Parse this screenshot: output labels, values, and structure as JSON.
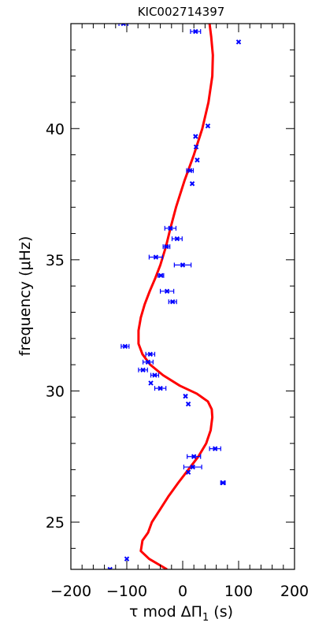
{
  "chart_data": {
    "type": "scatter",
    "title": "KIC002714397",
    "xlabel": "τ mod ΔΠ",
    "xlabel_subscript": "1",
    "xlabel_unit": "(s)",
    "ylabel": "frequency (μHz)",
    "xlim": [
      -200,
      200
    ],
    "ylim": [
      23.2,
      44.0
    ],
    "x_ticks": [
      -200,
      -100,
      0,
      100,
      200
    ],
    "x_tick_labels": [
      "−200",
      "−100",
      "0",
      "100",
      "200"
    ],
    "y_ticks": [
      25,
      30,
      35,
      40
    ],
    "y_tick_labels": [
      "25",
      "30",
      "35",
      "40"
    ],
    "grid": false,
    "colors": {
      "points": "#0000ff",
      "model": "#ff0000",
      "axes": "#000000"
    },
    "series": [
      {
        "kind": "points_with_xerror",
        "points": [
          {
            "x": -130,
            "y": 23.2,
            "xerr": 0
          },
          {
            "x": -100,
            "y": 23.6,
            "xerr": 0
          },
          {
            "x": 10,
            "y": 26.9,
            "xerr": 0
          },
          {
            "x": 72,
            "y": 26.5,
            "xerr": 4
          },
          {
            "x": 18,
            "y": 27.1,
            "xerr": 16
          },
          {
            "x": 20,
            "y": 27.5,
            "xerr": 12
          },
          {
            "x": 58,
            "y": 27.8,
            "xerr": 10
          },
          {
            "x": 10,
            "y": 29.5,
            "xerr": 0
          },
          {
            "x": 5,
            "y": 29.8,
            "xerr": 0
          },
          {
            "x": -40,
            "y": 30.1,
            "xerr": 10
          },
          {
            "x": -57,
            "y": 30.3,
            "xerr": 0
          },
          {
            "x": -50,
            "y": 30.6,
            "xerr": 7
          },
          {
            "x": -71,
            "y": 30.8,
            "xerr": 8
          },
          {
            "x": -62,
            "y": 31.1,
            "xerr": 9
          },
          {
            "x": -58,
            "y": 31.4,
            "xerr": 8
          },
          {
            "x": -103,
            "y": 31.7,
            "xerr": 7
          },
          {
            "x": -18,
            "y": 33.4,
            "xerr": 7
          },
          {
            "x": -28,
            "y": 33.8,
            "xerr": 12
          },
          {
            "x": -39,
            "y": 34.4,
            "xerr": 5
          },
          {
            "x": 0,
            "y": 34.8,
            "xerr": 15
          },
          {
            "x": -48,
            "y": 35.1,
            "xerr": 12
          },
          {
            "x": -29,
            "y": 35.5,
            "xerr": 6
          },
          {
            "x": -10,
            "y": 35.8,
            "xerr": 9
          },
          {
            "x": -22,
            "y": 36.2,
            "xerr": 10
          },
          {
            "x": 17,
            "y": 37.9,
            "xerr": 0
          },
          {
            "x": 13,
            "y": 38.4,
            "xerr": 6
          },
          {
            "x": 26,
            "y": 38.8,
            "xerr": 0
          },
          {
            "x": 24,
            "y": 39.3,
            "xerr": 0
          },
          {
            "x": 23,
            "y": 39.7,
            "xerr": 0
          },
          {
            "x": 45,
            "y": 40.1,
            "xerr": 0
          },
          {
            "x": 100,
            "y": 43.3,
            "xerr": 0
          },
          {
            "x": 23,
            "y": 43.7,
            "xerr": 9
          },
          {
            "x": -106,
            "y": 44.0,
            "xerr": 8
          }
        ]
      },
      {
        "kind": "line",
        "points": [
          {
            "x": -28,
            "y": 23.2
          },
          {
            "x": -60,
            "y": 23.6
          },
          {
            "x": -75,
            "y": 23.9
          },
          {
            "x": -72,
            "y": 24.3
          },
          {
            "x": -62,
            "y": 24.6
          },
          {
            "x": -55,
            "y": 25.0
          },
          {
            "x": -40,
            "y": 25.5
          },
          {
            "x": -25,
            "y": 26.0
          },
          {
            "x": -8,
            "y": 26.5
          },
          {
            "x": 10,
            "y": 27.0
          },
          {
            "x": 28,
            "y": 27.5
          },
          {
            "x": 42,
            "y": 28.0
          },
          {
            "x": 50,
            "y": 28.5
          },
          {
            "x": 53,
            "y": 29.0
          },
          {
            "x": 52,
            "y": 29.3
          },
          {
            "x": 45,
            "y": 29.6
          },
          {
            "x": 25,
            "y": 29.9
          },
          {
            "x": -5,
            "y": 30.2
          },
          {
            "x": -35,
            "y": 30.6
          },
          {
            "x": -58,
            "y": 31.0
          },
          {
            "x": -72,
            "y": 31.4
          },
          {
            "x": -79,
            "y": 31.8
          },
          {
            "x": -79,
            "y": 32.3
          },
          {
            "x": -75,
            "y": 32.8
          },
          {
            "x": -68,
            "y": 33.3
          },
          {
            "x": -59,
            "y": 33.8
          },
          {
            "x": -49,
            "y": 34.3
          },
          {
            "x": -40,
            "y": 34.8
          },
          {
            "x": -30,
            "y": 35.5
          },
          {
            "x": -22,
            "y": 36.2
          },
          {
            "x": -12,
            "y": 37.0
          },
          {
            "x": 3,
            "y": 38.0
          },
          {
            "x": 20,
            "y": 39.0
          },
          {
            "x": 35,
            "y": 40.0
          },
          {
            "x": 46,
            "y": 41.0
          },
          {
            "x": 53,
            "y": 42.0
          },
          {
            "x": 54,
            "y": 42.8
          },
          {
            "x": 51,
            "y": 43.5
          },
          {
            "x": 48,
            "y": 44.0
          }
        ]
      }
    ]
  }
}
